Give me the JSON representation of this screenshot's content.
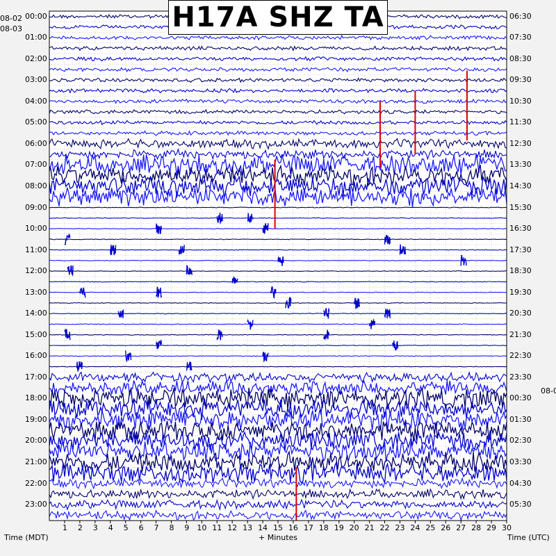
{
  "chart_data": {
    "type": "heatmap",
    "title": "H17A SHZ TA",
    "xlabel": "+ Minutes",
    "left_axis_label": "Time (MDT)",
    "right_axis_label": "Time (UTC)",
    "x_ticks": [
      "1",
      "2",
      "3",
      "4",
      "5",
      "6",
      "7",
      "8",
      "9",
      "10",
      "11",
      "12",
      "13",
      "14",
      "15",
      "16",
      "17",
      "18",
      "19",
      "20",
      "21",
      "22",
      "23",
      "24",
      "25",
      "26",
      "27",
      "28",
      "29",
      "30"
    ],
    "xlim": [
      0,
      30
    ],
    "left_date_top": "08-02",
    "left_date_second": "08-03",
    "right_date_change": "08-0",
    "left_hour_labels": [
      "00:00",
      "01:00",
      "02:00",
      "03:00",
      "04:00",
      "05:00",
      "06:00",
      "07:00",
      "08:00",
      "09:00",
      "10:00",
      "11:00",
      "12:00",
      "13:00",
      "14:00",
      "15:00",
      "16:00",
      "17:00",
      "18:00",
      "19:00",
      "20:00",
      "21:00",
      "22:00",
      "23:00"
    ],
    "right_hour_labels": [
      "06:30",
      "07:30",
      "08:30",
      "09:30",
      "10:30",
      "11:30",
      "12:30",
      "13:30",
      "14:30",
      "15:30",
      "16:30",
      "17:30",
      "18:30",
      "19:30",
      "20:30",
      "21:30",
      "22:30",
      "23:30",
      "00:30",
      "01:30",
      "02:30",
      "03:30",
      "04:30",
      "05:30"
    ],
    "trace_colors": [
      "#000066",
      "#0000cc",
      "#1a1aff"
    ],
    "event_color": "#dd0000",
    "grid": true
  }
}
